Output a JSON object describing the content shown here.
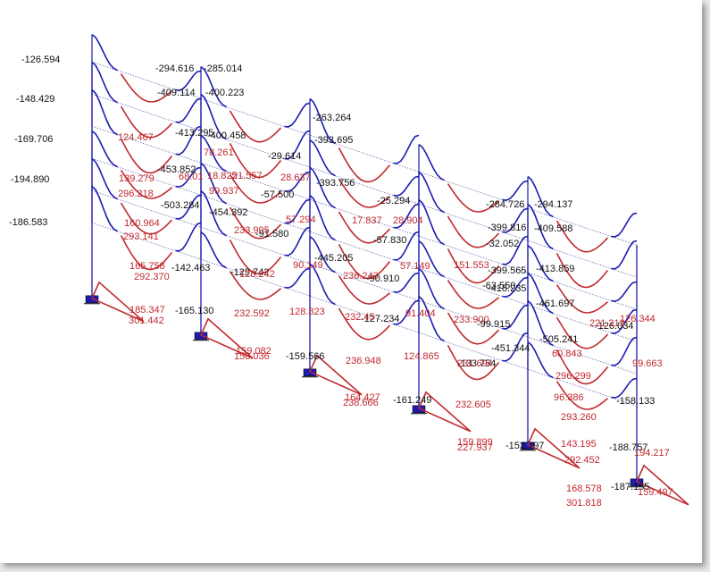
{
  "colors": {
    "positive": "#c0282e",
    "negative": "#1c1cb0",
    "frame": "#1c1cb0",
    "support": "#1c1cb0",
    "background": "#ffffff"
  },
  "labels_negative": [
    "-126.594",
    "-294.616",
    "-285.014",
    "-148.429",
    "-409.114",
    "-400.223",
    "-263.264",
    "-169.706",
    "-413.295",
    "-400.458",
    "-393.695",
    "-29.614",
    "-453.852",
    "-194.890",
    "-57.500",
    "-393.756",
    "-25.294",
    "-503.284",
    "-454.392",
    "-186.583",
    "-91.580",
    "-284.726",
    "-294.137",
    "-57.830",
    "-399.816",
    "-409.588",
    "-32.052",
    "-445.205",
    "-399.565",
    "-413.859",
    "-142.463",
    "-129.742",
    "-90.910",
    "-63.550",
    "-418.235",
    "-461.697",
    "-165.130",
    "-99.915",
    "-127.234",
    "-126.034",
    "-451.344",
    "-505.241",
    "-159.566",
    "-133.754",
    "-161.249",
    "-158.133",
    "-152.797",
    "-188.757",
    "-187.155"
  ],
  "labels_positive": [
    "124.467",
    "139.279",
    "296.218",
    "160.964",
    "293.141",
    "165.758",
    "292.370",
    "185.347",
    "301.442",
    "68.01",
    "78.261",
    "18.825",
    "99.937",
    "21.557",
    "28.637",
    "57.294",
    "17.837",
    "28.904",
    "233.995",
    "128.242",
    "90.149",
    "236.243",
    "57.149",
    "151.553",
    "232.592",
    "128.823",
    "232.45",
    "91.404",
    "233.900",
    "221.213",
    "159.082",
    "158.036",
    "236.948",
    "124.865",
    "231.694",
    "296.299",
    "164.427",
    "238.666",
    "232.605",
    "293.260",
    "159.899",
    "227.937",
    "143.195",
    "292.452",
    "168.578",
    "301.818",
    "194.217",
    "159.497",
    "126.344",
    "99.663",
    "96.386",
    "60.843"
  ]
}
